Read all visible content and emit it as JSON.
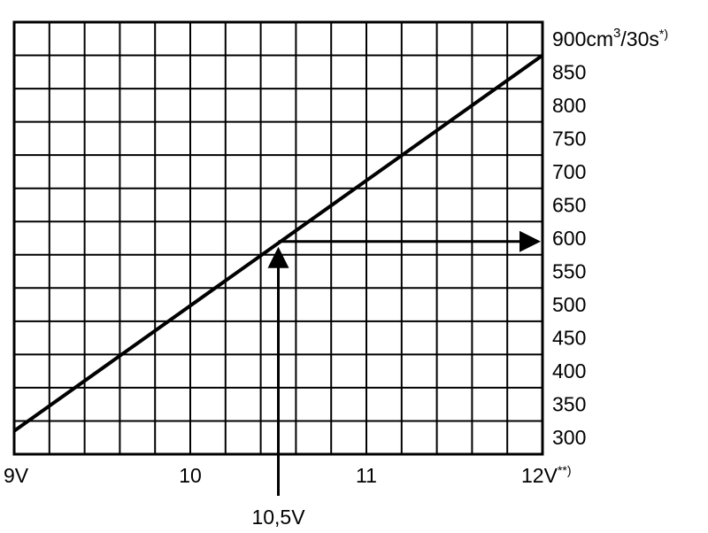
{
  "chart_data": {
    "type": "line",
    "x_ticks": [
      {
        "value": 9,
        "label": "9V",
        "suffix": ""
      },
      {
        "value": 10,
        "label": "10",
        "suffix": ""
      },
      {
        "value": 11,
        "label": "11",
        "suffix": ""
      },
      {
        "value": 12,
        "label": "12V",
        "suffix": "**)"
      }
    ],
    "x_min": 9,
    "x_max": 12,
    "x_grid_step": 0.2,
    "y_min": 300,
    "y_max": 900,
    "y_grid_step": 50,
    "y_ticks": [
      {
        "value": 900,
        "label": "900cm",
        "unit_sup": "3",
        "unit_rest": "/30s",
        "suffix": "*)"
      },
      {
        "value": 850,
        "label": "850"
      },
      {
        "value": 800,
        "label": "800"
      },
      {
        "value": 750,
        "label": "750"
      },
      {
        "value": 700,
        "label": "700"
      },
      {
        "value": 650,
        "label": "650"
      },
      {
        "value": 600,
        "label": "600"
      },
      {
        "value": 550,
        "label": "550"
      },
      {
        "value": 500,
        "label": "500"
      },
      {
        "value": 450,
        "label": "450"
      },
      {
        "value": 400,
        "label": "400"
      },
      {
        "value": 350,
        "label": "350"
      },
      {
        "value": 300,
        "label": "300"
      }
    ],
    "y_axis_side": "right",
    "grid": true,
    "series": [
      {
        "points": [
          {
            "x": 9.0,
            "y": 310
          },
          {
            "x": 12.0,
            "y": 875
          }
        ]
      }
    ],
    "annotation": {
      "x": 10.5,
      "y": 595,
      "label": "10,5V"
    }
  }
}
